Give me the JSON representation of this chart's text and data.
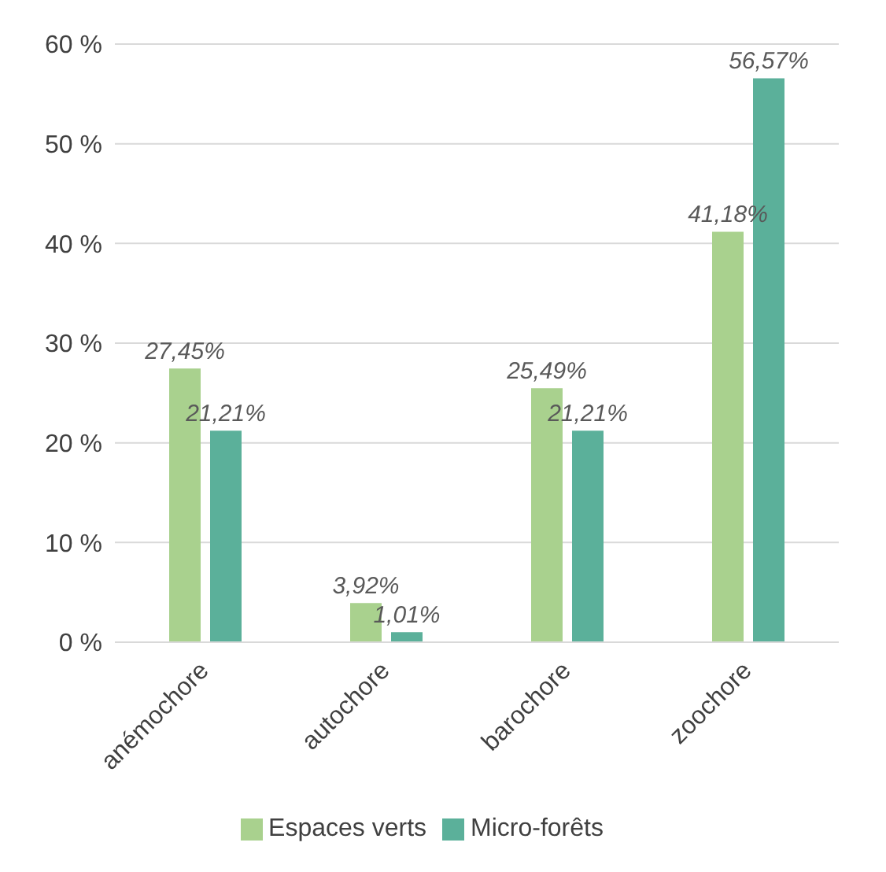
{
  "chart_data": {
    "type": "bar",
    "categories": [
      "anémochore",
      "autochore",
      "barochore",
      "zoochore"
    ],
    "series": [
      {
        "name": "Espaces verts",
        "color": "#a9d18e",
        "values": [
          27.45,
          3.92,
          25.49,
          41.18
        ],
        "value_labels": [
          "27,45%",
          "3,92%",
          "25,49%",
          "41,18%"
        ]
      },
      {
        "name": "Micro-forêts",
        "color": "#5bb09a",
        "values": [
          21.21,
          1.01,
          21.21,
          56.57
        ],
        "value_labels": [
          "21,21%",
          "1,01%",
          "21,21%",
          "56,57%"
        ]
      }
    ],
    "ylim": [
      0,
      60
    ],
    "yticks": [
      {
        "value": 0,
        "label": "0 %"
      },
      {
        "value": 10,
        "label": "10 %"
      },
      {
        "value": 20,
        "label": "20 %"
      },
      {
        "value": 30,
        "label": "30 %"
      },
      {
        "value": 40,
        "label": "40 %"
      },
      {
        "value": 50,
        "label": "50 %"
      },
      {
        "value": 60,
        "label": "60 %"
      }
    ],
    "grid": "y",
    "legend": "bottom"
  }
}
